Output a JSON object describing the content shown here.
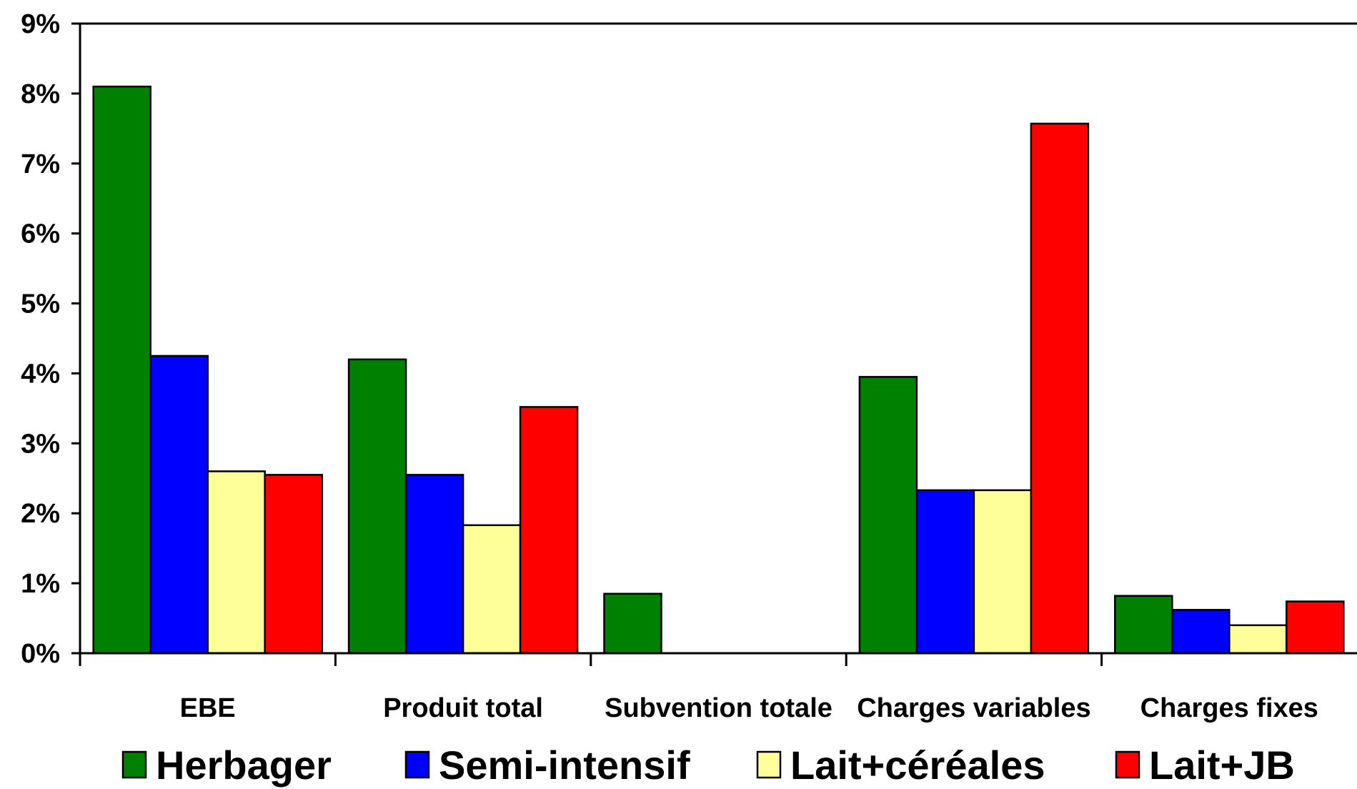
{
  "chart_data": {
    "type": "bar",
    "title": "",
    "xlabel": "",
    "ylabel": "",
    "ylim": [
      0,
      9
    ],
    "ytick_labels": [
      "0%",
      "1%",
      "2%",
      "3%",
      "4%",
      "5%",
      "6%",
      "7%",
      "8%",
      "9%"
    ],
    "ytick_values": [
      0,
      1,
      2,
      3,
      4,
      5,
      6,
      7,
      8,
      9
    ],
    "categories": [
      "EBE",
      "Produit total",
      "Subvention totale",
      "Charges variables",
      "Charges fixes"
    ],
    "series": [
      {
        "name": "Herbager",
        "color": "#008000",
        "values": [
          8.1,
          4.2,
          0.85,
          3.95,
          0.82
        ]
      },
      {
        "name": "Semi-intensif",
        "color": "#0000ff",
        "values": [
          4.25,
          2.55,
          0.0,
          2.33,
          0.62
        ]
      },
      {
        "name": "Lait+céréales",
        "color": "#ffff99",
        "values": [
          2.6,
          1.83,
          0.0,
          2.33,
          0.4
        ]
      },
      {
        "name": "Lait+JB",
        "color": "#ff0000",
        "values": [
          2.55,
          3.52,
          0.0,
          7.57,
          0.74
        ]
      }
    ],
    "grid": false,
    "legend_position": "bottom"
  }
}
